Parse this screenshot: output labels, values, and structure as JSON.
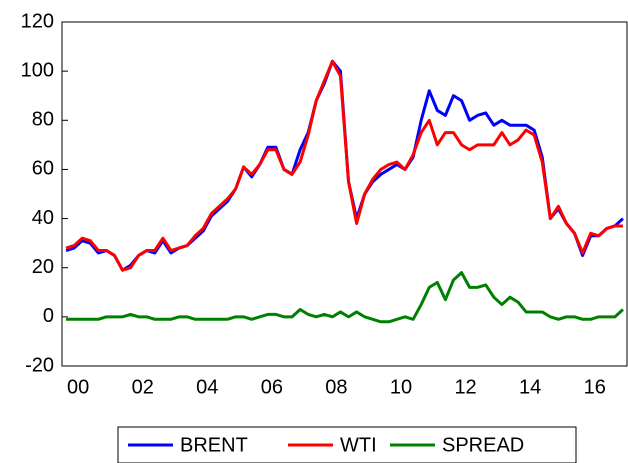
{
  "chart_data": {
    "type": "line",
    "categories": [
      null,
      "00",
      null,
      null,
      null,
      null,
      null,
      null,
      null,
      "02",
      null,
      null,
      null,
      null,
      null,
      null,
      null,
      "04",
      null,
      null,
      null,
      null,
      null,
      null,
      null,
      "06",
      null,
      null,
      null,
      null,
      null,
      null,
      null,
      "08",
      null,
      null,
      null,
      null,
      null,
      null,
      null,
      "10",
      null,
      null,
      null,
      null,
      null,
      null,
      null,
      "12",
      null,
      null,
      null,
      null,
      null,
      null,
      null,
      "14",
      null,
      null,
      null,
      null,
      null,
      null,
      null,
      "16",
      null,
      null,
      null,
      null
    ],
    "series": [
      {
        "name": "BRENT",
        "color": "#0000ff",
        "values": [
          27,
          28,
          31,
          30,
          26,
          27,
          25,
          19,
          21,
          25,
          27,
          26,
          31,
          26,
          28,
          29,
          32,
          35,
          41,
          44,
          47,
          52,
          61,
          57,
          62,
          69,
          69,
          60,
          58,
          68,
          75,
          88,
          95,
          104,
          100,
          55,
          40,
          50,
          55,
          58,
          60,
          62,
          60,
          65,
          80,
          92,
          84,
          82,
          90,
          88,
          80,
          82,
          83,
          78,
          80,
          78,
          78,
          78,
          76,
          65,
          40,
          44,
          38,
          34,
          25,
          33,
          33,
          36,
          37,
          40
        ]
      },
      {
        "name": "WTI",
        "color": "#ff0000",
        "values": [
          28,
          29,
          32,
          31,
          27,
          27,
          25,
          19,
          20,
          25,
          27,
          27,
          32,
          27,
          28,
          29,
          33,
          36,
          42,
          45,
          48,
          52,
          61,
          58,
          62,
          68,
          68,
          60,
          58,
          63,
          74,
          88,
          96,
          104,
          98,
          55,
          38,
          50,
          56,
          60,
          62,
          63,
          60,
          66,
          75,
          80,
          70,
          75,
          75,
          70,
          68,
          70,
          70,
          70,
          75,
          70,
          72,
          76,
          74,
          63,
          40,
          45,
          38,
          34,
          26,
          34,
          33,
          36,
          37,
          37
        ]
      },
      {
        "name": "SPREAD",
        "color": "#008000",
        "values": [
          -1,
          -1,
          -1,
          -1,
          -1,
          0,
          0,
          0,
          1,
          0,
          0,
          -1,
          -1,
          -1,
          0,
          0,
          -1,
          -1,
          -1,
          -1,
          -1,
          0,
          0,
          -1,
          0,
          1,
          1,
          0,
          0,
          3,
          1,
          0,
          1,
          0,
          2,
          0,
          2,
          0,
          -1,
          -2,
          -2,
          -1,
          0,
          -1,
          5,
          12,
          14,
          7,
          15,
          18,
          12,
          12,
          13,
          8,
          5,
          8,
          6,
          2,
          2,
          2,
          0,
          -1,
          0,
          0,
          -1,
          -1,
          0,
          0,
          0,
          3
        ]
      }
    ],
    "ylim": [
      -20,
      120
    ],
    "yticks": [
      -20,
      0,
      20,
      40,
      60,
      80,
      100,
      120
    ],
    "legend": "bottom"
  }
}
